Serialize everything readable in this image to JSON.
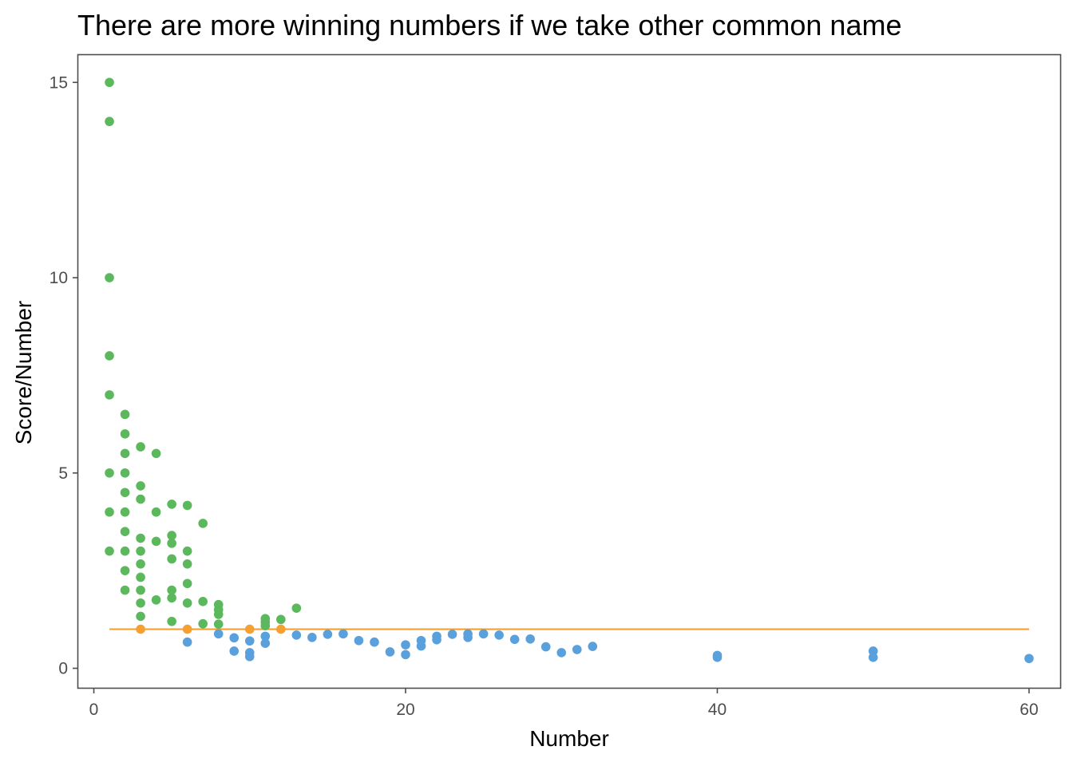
{
  "chart_data": {
    "type": "scatter",
    "title": "There are more winning numbers if we take other common name",
    "xlabel": "Number",
    "ylabel": "Score/Number",
    "xlim": [
      -1,
      62
    ],
    "ylim": [
      -0.5,
      15.7
    ],
    "x_ticks": [
      0,
      20,
      40,
      60
    ],
    "y_ticks": [
      0,
      5,
      10,
      15
    ],
    "grid": false,
    "legend": "none",
    "colors": {
      "above": "#5cb85c",
      "equal": "#f5a030",
      "below": "#5aa0dc",
      "reference_line": "#f5a030",
      "frame": "#4d4d4d"
    },
    "reference_line": {
      "y": 1,
      "x_start": 1,
      "x_end": 60
    },
    "series": [
      {
        "group": "above",
        "points": [
          [
            1,
            15
          ],
          [
            1,
            14
          ],
          [
            1,
            10
          ],
          [
            1,
            8
          ],
          [
            1,
            7
          ],
          [
            1,
            5
          ],
          [
            1,
            4
          ],
          [
            1,
            3
          ],
          [
            2,
            6.5
          ],
          [
            2,
            6
          ],
          [
            2,
            5.5
          ],
          [
            2,
            5
          ],
          [
            2,
            4.5
          ],
          [
            2,
            4
          ],
          [
            2,
            3.5
          ],
          [
            2,
            3
          ],
          [
            2,
            2.5
          ],
          [
            2,
            2
          ],
          [
            3,
            5.67
          ],
          [
            3,
            4.67
          ],
          [
            3,
            4.33
          ],
          [
            3,
            3.33
          ],
          [
            3,
            3
          ],
          [
            3,
            2.67
          ],
          [
            3,
            2.33
          ],
          [
            3,
            2
          ],
          [
            3,
            1.67
          ],
          [
            3,
            1.33
          ],
          [
            4,
            5.5
          ],
          [
            4,
            4
          ],
          [
            4,
            3.25
          ],
          [
            4,
            1.75
          ],
          [
            5,
            4.2
          ],
          [
            5,
            3.4
          ],
          [
            5,
            3.2
          ],
          [
            5,
            2.8
          ],
          [
            5,
            2
          ],
          [
            5,
            1.8
          ],
          [
            5,
            1.2
          ],
          [
            6,
            4.17
          ],
          [
            6,
            3
          ],
          [
            6,
            2.67
          ],
          [
            6,
            2.17
          ],
          [
            6,
            1.67
          ],
          [
            7,
            3.71
          ],
          [
            7,
            1.71
          ],
          [
            7,
            1.14
          ],
          [
            8,
            1.63
          ],
          [
            8,
            1.5
          ],
          [
            8,
            1.38
          ],
          [
            8,
            1.13
          ],
          [
            11,
            1.27
          ],
          [
            11,
            1.18
          ],
          [
            11,
            1.09
          ],
          [
            12,
            1.25
          ],
          [
            13,
            1.54
          ]
        ]
      },
      {
        "group": "equal",
        "points": [
          [
            3,
            1
          ],
          [
            6,
            1
          ],
          [
            10,
            1
          ],
          [
            12,
            1
          ]
        ]
      },
      {
        "group": "below",
        "points": [
          [
            6,
            0.67
          ],
          [
            8,
            0.88
          ],
          [
            9,
            0.78
          ],
          [
            9,
            0.44
          ],
          [
            10,
            0.7
          ],
          [
            10,
            0.4
          ],
          [
            10,
            0.3
          ],
          [
            11,
            0.82
          ],
          [
            11,
            0.64
          ],
          [
            13,
            0.85
          ],
          [
            14,
            0.79
          ],
          [
            15,
            0.87
          ],
          [
            16,
            0.88
          ],
          [
            17,
            0.71
          ],
          [
            18,
            0.67
          ],
          [
            19,
            0.42
          ],
          [
            20,
            0.6
          ],
          [
            20,
            0.35
          ],
          [
            21,
            0.71
          ],
          [
            21,
            0.57
          ],
          [
            22,
            0.82
          ],
          [
            22,
            0.73
          ],
          [
            23,
            0.87
          ],
          [
            24,
            0.88
          ],
          [
            24,
            0.79
          ],
          [
            25,
            0.88
          ],
          [
            26,
            0.85
          ],
          [
            27,
            0.74
          ],
          [
            28,
            0.75
          ],
          [
            29,
            0.55
          ],
          [
            30,
            0.4
          ],
          [
            31,
            0.48
          ],
          [
            32,
            0.56
          ],
          [
            40,
            0.33
          ],
          [
            40,
            0.28
          ],
          [
            50,
            0.44
          ],
          [
            50,
            0.28
          ],
          [
            60,
            0.25
          ]
        ]
      }
    ]
  }
}
